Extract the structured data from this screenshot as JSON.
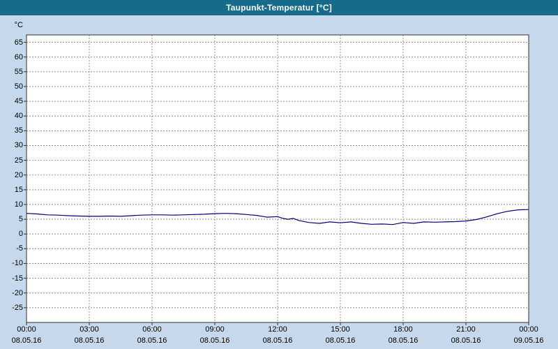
{
  "window": {
    "title": "Taupunkt-Temperatur [°C]"
  },
  "colors": {
    "titlebar_bg": "#176b8a",
    "background": "#c6d9ec",
    "plot_bg": "#ffffff",
    "plot_border": "#303030",
    "grid": "#8f8f8f",
    "line": "#000080"
  },
  "chart_data": {
    "type": "line",
    "title": "Taupunkt-Temperatur [°C]",
    "ylabel_unit": "°C",
    "xlabel": "",
    "grid": true,
    "legend": "none",
    "xlim": [
      0,
      24
    ],
    "ylim": [
      -30,
      67.5
    ],
    "y_ticks": [
      65,
      60,
      55,
      50,
      45,
      40,
      35,
      30,
      25,
      20,
      15,
      10,
      5,
      0,
      -5,
      -10,
      -15,
      -20,
      -25
    ],
    "x_ticks": [
      "00:00",
      "03:00",
      "06:00",
      "09:00",
      "12:00",
      "15:00",
      "18:00",
      "21:00",
      "00:00"
    ],
    "x_tick_hours": [
      0,
      3,
      6,
      9,
      12,
      15,
      18,
      21,
      24
    ],
    "x_dates": [
      "08.05.16",
      "08.05.16",
      "08.05.16",
      "08.05.16",
      "08.05.16",
      "08.05.16",
      "08.05.16",
      "08.05.16",
      "09.05.16"
    ],
    "series": [
      {
        "name": "Taupunkt-Temperatur",
        "color": "#000080",
        "x": [
          0,
          0.5,
          1,
          1.5,
          2,
          2.5,
          3,
          3.5,
          4,
          4.5,
          5,
          5.5,
          6,
          6.5,
          7,
          7.5,
          8,
          8.5,
          9,
          9.5,
          10,
          10.5,
          11,
          11.5,
          12,
          12.25,
          12.5,
          12.75,
          13,
          13.5,
          14,
          14.5,
          15,
          15.5,
          16,
          16.5,
          17,
          17.5,
          18,
          18.5,
          19,
          19.5,
          20,
          20.5,
          21,
          21.5,
          22,
          22.5,
          23,
          23.5,
          24
        ],
        "y": [
          7.0,
          6.8,
          6.5,
          6.4,
          6.2,
          6.1,
          6.0,
          6.0,
          6.1,
          6.0,
          6.2,
          6.4,
          6.5,
          6.5,
          6.4,
          6.5,
          6.6,
          6.7,
          6.9,
          7.0,
          6.9,
          6.6,
          6.3,
          5.7,
          5.9,
          5.3,
          5.0,
          5.3,
          4.6,
          3.9,
          3.6,
          4.1,
          3.8,
          4.1,
          3.6,
          3.3,
          3.4,
          3.2,
          3.9,
          3.6,
          4.1,
          4.0,
          4.1,
          4.2,
          4.4,
          4.9,
          5.8,
          6.9,
          7.7,
          8.2,
          8.3
        ]
      }
    ]
  }
}
